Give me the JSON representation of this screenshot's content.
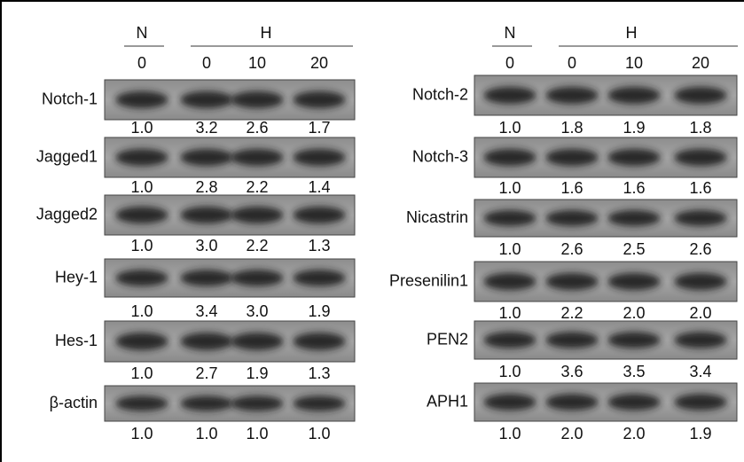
{
  "left": {
    "header": {
      "groups": [
        "N",
        "H"
      ],
      "lanes": [
        "0",
        "0",
        "10",
        "20"
      ]
    },
    "rows": [
      {
        "label": "Notch-1",
        "values": [
          "1.0",
          "3.2",
          "2.6",
          "1.7"
        ]
      },
      {
        "label": "Jagged1",
        "values": [
          "1.0",
          "2.8",
          "2.2",
          "1.4"
        ]
      },
      {
        "label": "Jagged2",
        "values": [
          "1.0",
          "3.0",
          "2.2",
          "1.3"
        ]
      },
      {
        "label": "Hey-1",
        "values": [
          "1.0",
          "3.4",
          "3.0",
          "1.9"
        ]
      },
      {
        "label": "Hes-1",
        "values": [
          "1.0",
          "2.7",
          "1.9",
          "1.3"
        ]
      },
      {
        "label": "β-actin",
        "values": [
          "1.0",
          "1.0",
          "1.0",
          "1.0"
        ]
      }
    ]
  },
  "right": {
    "header": {
      "groups": [
        "N",
        "H"
      ],
      "lanes": [
        "0",
        "0",
        "10",
        "20"
      ]
    },
    "rows": [
      {
        "label": "Notch-2",
        "values": [
          "1.0",
          "1.8",
          "1.9",
          "1.8"
        ]
      },
      {
        "label": "Notch-3",
        "values": [
          "1.0",
          "1.6",
          "1.6",
          "1.6"
        ]
      },
      {
        "label": "Nicastrin",
        "values": [
          "1.0",
          "2.6",
          "2.5",
          "2.6"
        ]
      },
      {
        "label": "Presenilin1",
        "values": [
          "1.0",
          "2.2",
          "2.0",
          "2.0"
        ]
      },
      {
        "label": "PEN2",
        "values": [
          "1.0",
          "3.6",
          "3.5",
          "3.4"
        ]
      },
      {
        "label": "APH1",
        "values": [
          "1.0",
          "2.0",
          "2.0",
          "1.9"
        ]
      }
    ]
  }
}
